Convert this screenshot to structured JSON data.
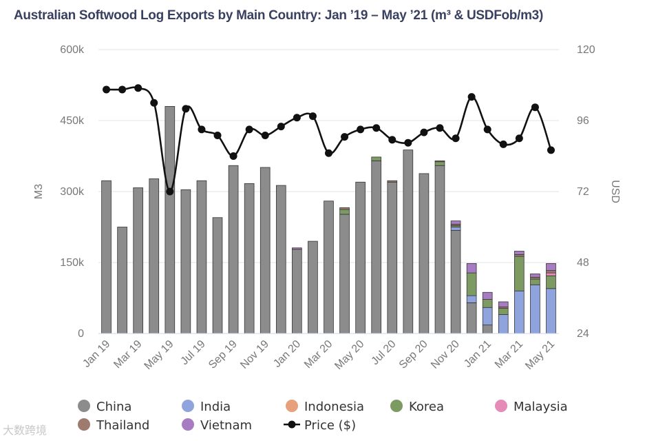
{
  "chart_data": {
    "type": "bar",
    "title": "Australian Softwood Log Exports by Main Country: Jan ’19 – May ’21 (m³ & USDFob/m3)",
    "ylabel_left": "M3",
    "ylabel_right": "USD",
    "ylim_left": [
      0,
      600000
    ],
    "ylim_right": [
      24,
      120
    ],
    "left_ticks": [
      "0",
      "150k",
      "300k",
      "450k",
      "600k"
    ],
    "left_tick_values": [
      0,
      150000,
      300000,
      450000,
      600000
    ],
    "right_ticks": [
      "24",
      "48",
      "72",
      "96",
      "120"
    ],
    "right_tick_values": [
      24,
      48,
      72,
      96,
      120
    ],
    "categories": [
      "Jan 19",
      "Feb 19",
      "Mar 19",
      "Apr 19",
      "May 19",
      "Jun 19",
      "Jul 19",
      "Aug 19",
      "Sep 19",
      "Oct 19",
      "Nov 19",
      "Dec 19",
      "Jan 20",
      "Feb 20",
      "Mar 20",
      "Apr 20",
      "May 20",
      "Jun 20",
      "Jul 20",
      "Aug 20",
      "Sep 20",
      "Oct 20",
      "Nov 20",
      "Dec 20",
      "Jan 21",
      "Feb 21",
      "Mar 21",
      "Apr 21",
      "May 21"
    ],
    "x_tick_labels": [
      "Jan 19",
      "",
      "Mar 19",
      "",
      "May 19",
      "",
      "Jul 19",
      "",
      "Sep 19",
      "",
      "Nov 19",
      "",
      "Jan 20",
      "",
      "Mar 20",
      "",
      "May 20",
      "",
      "Jul 20",
      "",
      "Sep 20",
      "",
      "Nov 20",
      "",
      "Jan 21",
      "",
      "Mar 21",
      "",
      "May 21"
    ],
    "series": [
      {
        "name": "China",
        "color": "#8c8c8c",
        "values": [
          323000,
          225000,
          308000,
          327000,
          480000,
          304000,
          323000,
          245000,
          355000,
          317000,
          351000,
          313000,
          178000,
          195000,
          280000,
          252000,
          320000,
          365000,
          320000,
          388000,
          338000,
          355000,
          218000,
          65000,
          18000,
          0,
          0,
          0,
          0
        ]
      },
      {
        "name": "India",
        "color": "#8fa4dc",
        "values": [
          0,
          0,
          0,
          0,
          0,
          0,
          0,
          0,
          0,
          0,
          0,
          0,
          0,
          0,
          0,
          0,
          0,
          0,
          0,
          0,
          0,
          0,
          7000,
          15000,
          37000,
          40000,
          90000,
          103000,
          95000
        ]
      },
      {
        "name": "Indonesia",
        "color": "#e8a07a",
        "values": [
          0,
          0,
          0,
          0,
          0,
          0,
          0,
          0,
          0,
          0,
          0,
          0,
          0,
          0,
          0,
          0,
          0,
          0,
          0,
          0,
          0,
          0,
          0,
          0,
          0,
          0,
          0,
          0,
          0
        ]
      },
      {
        "name": "Korea",
        "color": "#7d9a63",
        "values": [
          0,
          0,
          0,
          0,
          0,
          0,
          0,
          0,
          0,
          0,
          0,
          0,
          0,
          0,
          0,
          10000,
          0,
          8000,
          0,
          0,
          0,
          8000,
          3000,
          48000,
          17000,
          13000,
          73000,
          12000,
          27000
        ]
      },
      {
        "name": "Malaysia",
        "color": "#e68ab8",
        "values": [
          0,
          0,
          0,
          0,
          0,
          0,
          0,
          0,
          0,
          0,
          0,
          0,
          0,
          0,
          0,
          0,
          0,
          0,
          0,
          0,
          0,
          0,
          0,
          0,
          0,
          0,
          0,
          0,
          6000
        ]
      },
      {
        "name": "Thailand",
        "color": "#9e7b6e",
        "values": [
          0,
          0,
          0,
          0,
          0,
          0,
          0,
          0,
          0,
          0,
          0,
          0,
          0,
          0,
          0,
          4000,
          0,
          0,
          3000,
          0,
          0,
          2000,
          3000,
          0,
          0,
          3000,
          4000,
          4000,
          5000
        ]
      },
      {
        "name": "Vietnam",
        "color": "#a77cc2",
        "values": [
          0,
          0,
          0,
          0,
          0,
          0,
          0,
          0,
          0,
          0,
          0,
          0,
          3000,
          0,
          0,
          0,
          0,
          0,
          0,
          0,
          0,
          0,
          7000,
          20000,
          15000,
          11000,
          7000,
          7000,
          15000
        ]
      }
    ],
    "line": {
      "name": "Price ($)",
      "color": "#111111",
      "axis": "right",
      "values": [
        106.5,
        106.5,
        107,
        102,
        72,
        100,
        93,
        91,
        84,
        93,
        91,
        94,
        97,
        97.5,
        85,
        90.5,
        93,
        93.5,
        89.5,
        88.5,
        92,
        93.5,
        90,
        104,
        93,
        88,
        90,
        100.5,
        86
      ]
    },
    "legend": {
      "position": "bottom",
      "entries": [
        "China",
        "India",
        "Indonesia",
        "Korea",
        "Malaysia",
        "Thailand",
        "Vietnam",
        "Price ($)"
      ]
    }
  },
  "watermark": "大数跨境"
}
